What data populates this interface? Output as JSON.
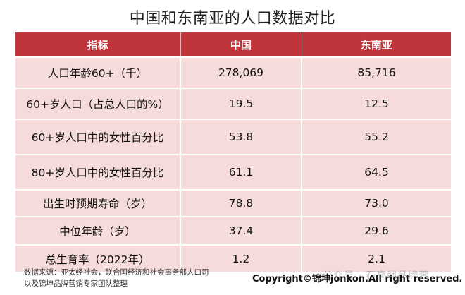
{
  "title": "中国和东南亚的人口数据对比",
  "chart_data": {
    "type": "table",
    "columns": [
      "指标",
      "中国",
      "东南亚"
    ],
    "rows": [
      {
        "label": "人口年龄60+（千）",
        "china": "278,069",
        "sea": "85,716"
      },
      {
        "label": "60+岁人口（占总人口的%）",
        "china": "19.5",
        "sea": "12.5"
      },
      {
        "label": "60+岁人口中的女性百分比",
        "china": "53.8",
        "sea": "55.2"
      },
      {
        "label": "80+岁人口中的女性百分比",
        "china": "61.1",
        "sea": "64.5"
      },
      {
        "label": "出生时预期寿命（岁）",
        "china": "78.8",
        "sea": "73.0"
      },
      {
        "label": "中位年龄（岁）",
        "china": "37.4",
        "sea": "29.6"
      },
      {
        "label": "总生育率（2022年）",
        "china": "1.2",
        "sea": "2.1"
      }
    ]
  },
  "footnote": {
    "line1": "数据来源：亚太经社会，联合国经济和社会事务部人口司",
    "line2": "以及锦坤品牌营销专家团队整理"
  },
  "copyright": "Copyright©锦坤jonkon.All right reserved.",
  "watermark": "公众号 · 石亮强品牌营",
  "colors": {
    "header": "#c0343c",
    "row": "#f5dcdb"
  }
}
